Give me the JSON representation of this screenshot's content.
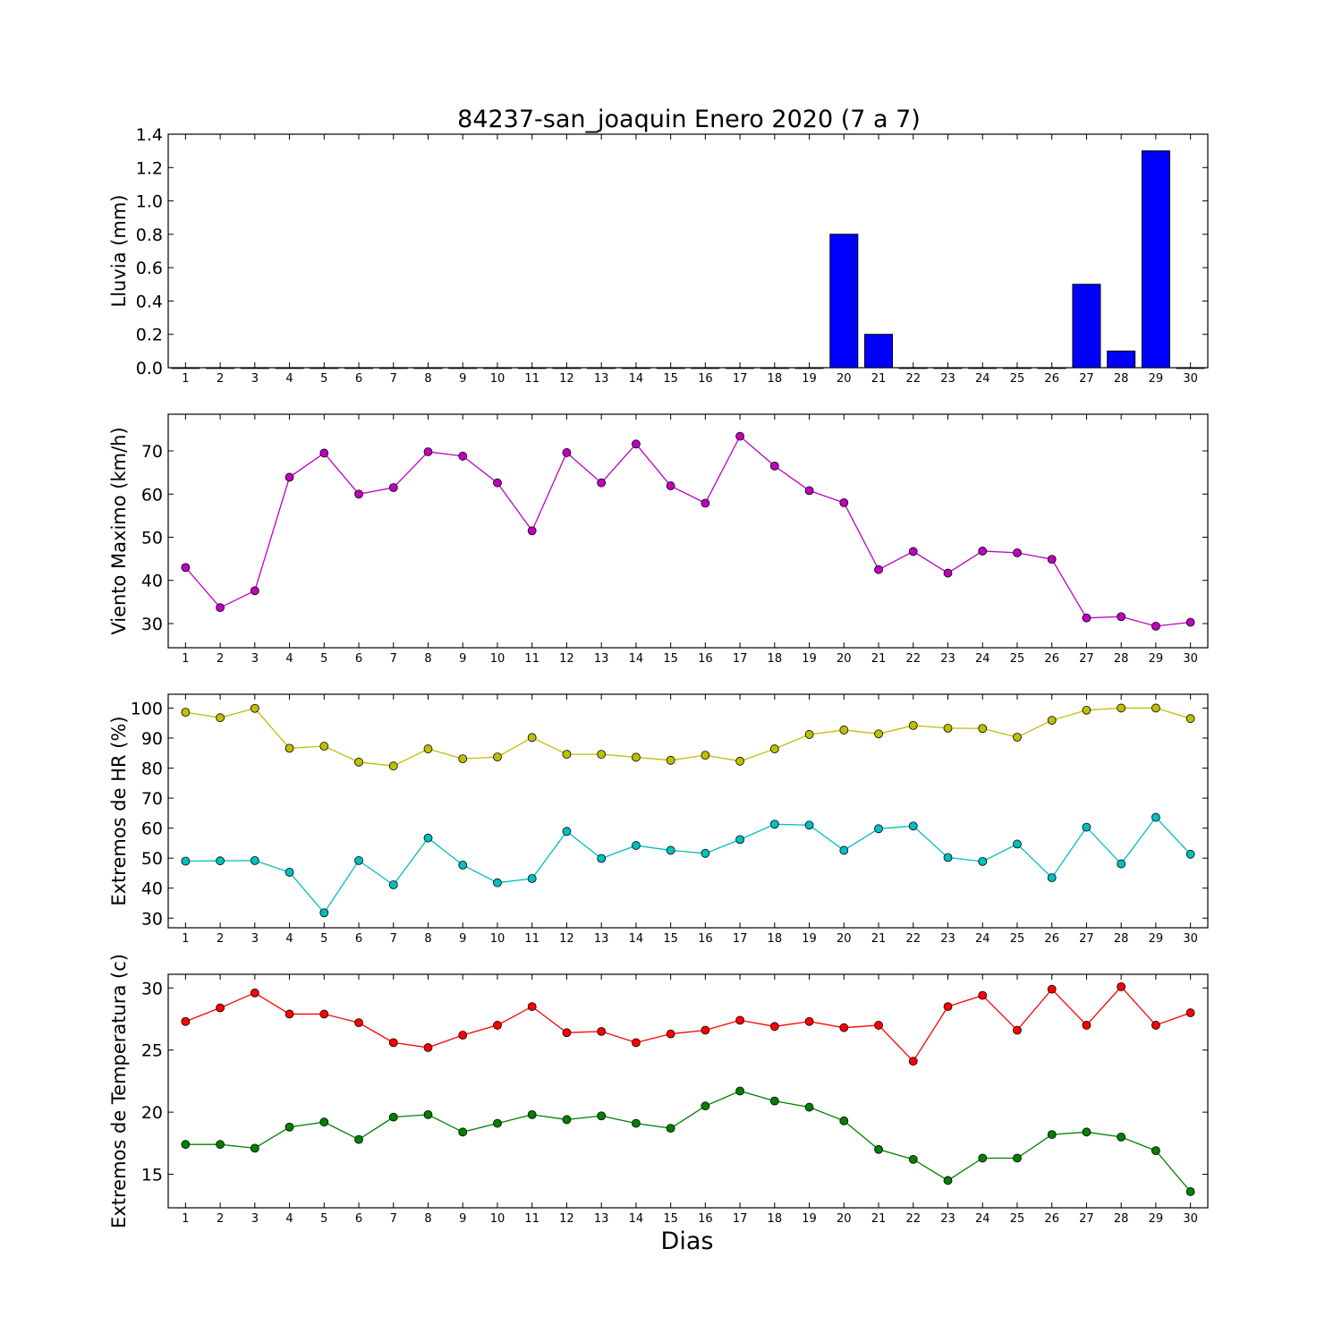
{
  "figure": {
    "title": "84237-san_joaquin Enero 2020  (7 a 7)",
    "xlabel": "Dias"
  },
  "colors": {
    "rain": "#0000ff",
    "wind": "#bf00bf",
    "hr_max": "#bfbf00",
    "hr_min": "#00bfbf",
    "temp_max": "#ff0000",
    "temp_min": "#008000"
  },
  "chart_data": [
    {
      "id": "rain",
      "type": "bar",
      "ylabel": "Lluvia (mm)",
      "categories": [
        "1",
        "2",
        "3",
        "4",
        "5",
        "6",
        "7",
        "8",
        "9",
        "10",
        "11",
        "12",
        "13",
        "14",
        "15",
        "16",
        "17",
        "18",
        "19",
        "20",
        "21",
        "22",
        "23",
        "24",
        "25",
        "26",
        "27",
        "28",
        "29",
        "30"
      ],
      "values": [
        0,
        0,
        0,
        0,
        0,
        0,
        0,
        0,
        0,
        0,
        0,
        0,
        0,
        0,
        0,
        0,
        0,
        0,
        0,
        0.8,
        0.2,
        0,
        0,
        0,
        0,
        0,
        0.5,
        0.1,
        1.3,
        0
      ],
      "ylim": [
        0,
        1.4
      ],
      "yticks": [
        "0.0",
        "0.2",
        "0.4",
        "0.6",
        "0.8",
        "1.0",
        "1.2",
        "1.4"
      ],
      "grid": false
    },
    {
      "id": "wind",
      "type": "line",
      "ylabel": "Viento Maximo (km/h)",
      "categories": [
        "1",
        "2",
        "3",
        "4",
        "5",
        "6",
        "7",
        "8",
        "9",
        "10",
        "11",
        "12",
        "13",
        "14",
        "15",
        "16",
        "17",
        "18",
        "19",
        "20",
        "21",
        "22",
        "23",
        "24",
        "25",
        "26",
        "27",
        "28",
        "29",
        "30"
      ],
      "series": [
        {
          "color_key": "wind",
          "values": [
            43,
            33.7,
            37.6,
            63.9,
            69.5,
            60,
            61.5,
            69.8,
            68.8,
            62.6,
            51.5,
            69.6,
            62.6,
            71.6,
            61.9,
            57.9,
            73.4,
            66.5,
            60.8,
            58,
            42.5,
            46.7,
            41.7,
            46.8,
            46.4,
            44.9,
            31.3,
            31.6,
            29.4,
            30.3
          ]
        }
      ],
      "ylim": [
        24.4,
        78.5
      ],
      "yticks": [
        "30",
        "40",
        "50",
        "60",
        "70"
      ],
      "grid": false
    },
    {
      "id": "hr",
      "type": "line",
      "ylabel": "Extremos de HR (%)",
      "categories": [
        "1",
        "2",
        "3",
        "4",
        "5",
        "6",
        "7",
        "8",
        "9",
        "10",
        "11",
        "12",
        "13",
        "14",
        "15",
        "16",
        "17",
        "18",
        "19",
        "20",
        "21",
        "22",
        "23",
        "24",
        "25",
        "26",
        "27",
        "28",
        "29",
        "30"
      ],
      "series": [
        {
          "color_key": "hr_max",
          "values": [
            98.6,
            96.8,
            99.9,
            86.6,
            87.3,
            82,
            80.7,
            86.4,
            83.1,
            83.7,
            90.2,
            84.6,
            84.6,
            83.6,
            82.6,
            84.3,
            82.3,
            86.4,
            91.2,
            92.7,
            91.4,
            94.2,
            93.3,
            93.2,
            90.3,
            95.9,
            99.3,
            100,
            100,
            96.5
          ]
        },
        {
          "color_key": "hr_min",
          "values": [
            49,
            49.1,
            49.2,
            45.3,
            31.8,
            49.2,
            41.1,
            56.7,
            47.7,
            41.8,
            43.2,
            58.9,
            49.9,
            54.2,
            52.6,
            51.6,
            56.2,
            61.3,
            61,
            52.6,
            59.8,
            60.7,
            50.2,
            48.9,
            54.7,
            43.5,
            60.3,
            48.1,
            63.6,
            51.3
          ]
        }
      ],
      "ylim": [
        26.8,
        104.6
      ],
      "yticks": [
        "30",
        "40",
        "50",
        "60",
        "70",
        "80",
        "90",
        "100"
      ],
      "grid": false
    },
    {
      "id": "temp",
      "type": "line",
      "ylabel": "Extremos de Temperatura (c)",
      "categories": [
        "1",
        "2",
        "3",
        "4",
        "5",
        "6",
        "7",
        "8",
        "9",
        "10",
        "11",
        "12",
        "13",
        "14",
        "15",
        "16",
        "17",
        "18",
        "19",
        "20",
        "21",
        "22",
        "23",
        "24",
        "25",
        "26",
        "27",
        "28",
        "29",
        "30"
      ],
      "series": [
        {
          "color_key": "temp_max",
          "values": [
            27.3,
            28.4,
            29.6,
            27.9,
            27.9,
            27.2,
            25.6,
            25.2,
            26.2,
            27,
            28.5,
            26.4,
            26.5,
            25.6,
            26.3,
            26.6,
            27.4,
            26.9,
            27.3,
            26.8,
            27,
            24.1,
            28.5,
            29.4,
            26.6,
            29.9,
            27,
            30.1,
            27,
            28
          ]
        },
        {
          "color_key": "temp_min",
          "values": [
            17.4,
            17.4,
            17.1,
            18.8,
            19.2,
            17.8,
            19.6,
            19.8,
            18.4,
            19.1,
            19.8,
            19.4,
            19.7,
            19.1,
            18.7,
            20.5,
            21.7,
            20.9,
            20.4,
            19.3,
            17,
            16.2,
            14.5,
            16.3,
            16.3,
            18.2,
            18.4,
            18,
            16.9,
            13.6
          ]
        }
      ],
      "ylim": [
        12.3,
        31.1
      ],
      "yticks": [
        "15",
        "20",
        "25",
        "30"
      ],
      "grid": false
    }
  ]
}
